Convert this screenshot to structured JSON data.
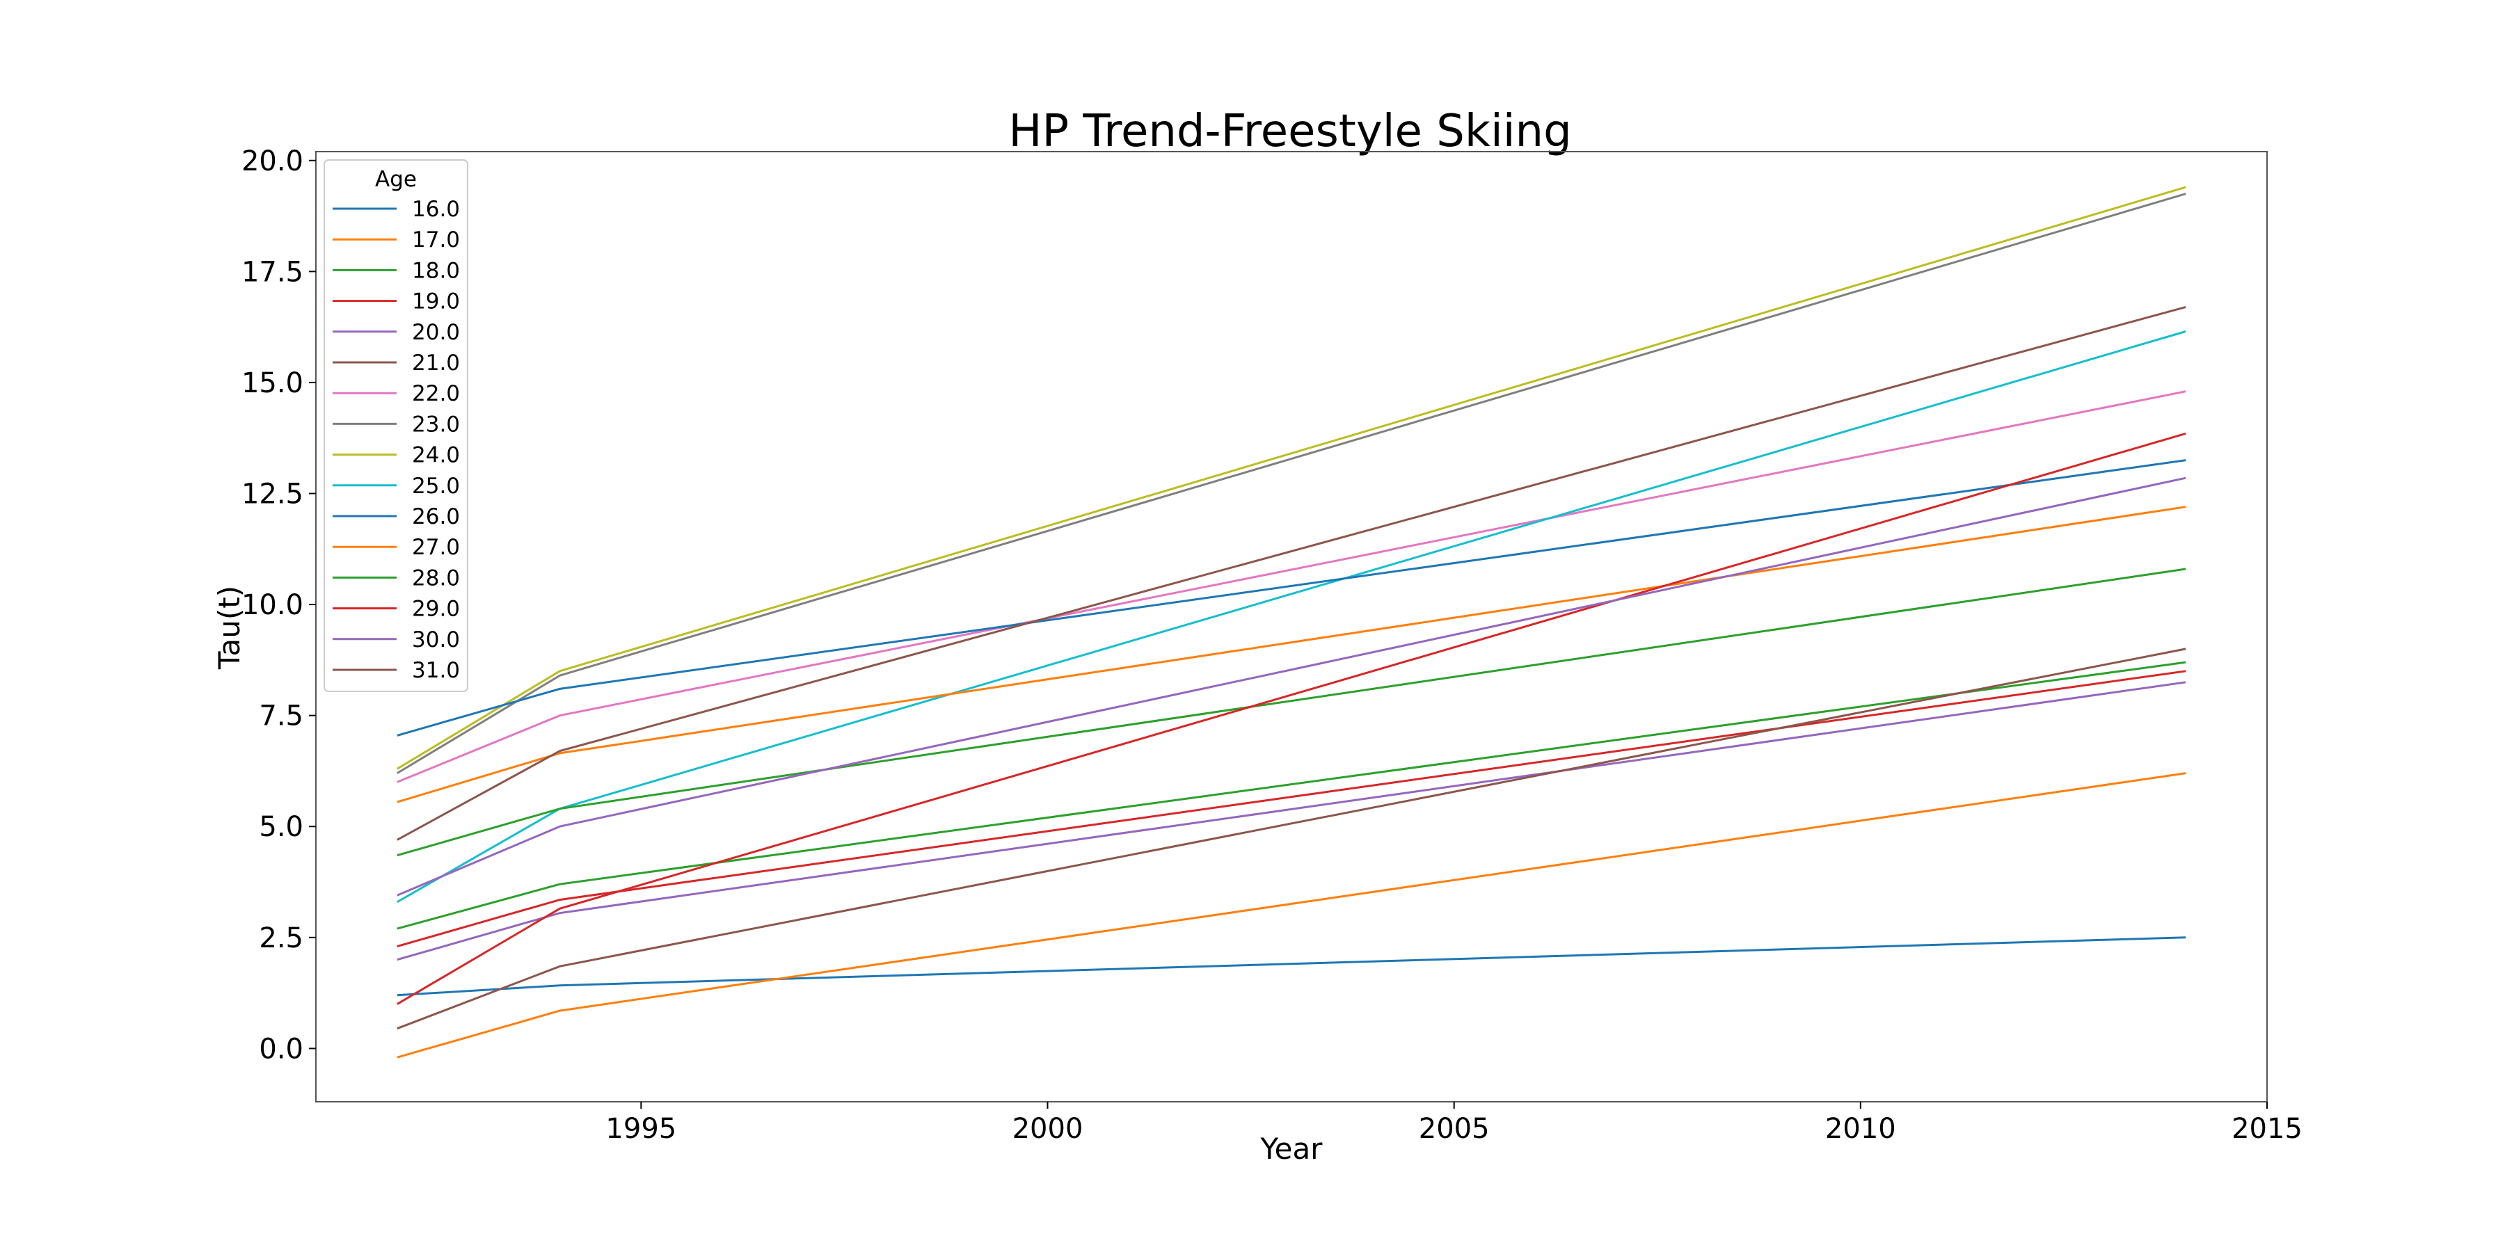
{
  "chart_data": {
    "type": "line",
    "title": "HP Trend-Freestyle Skiing",
    "xlabel": "Year",
    "ylabel": "Tau(t)",
    "xlim": [
      1991,
      2015
    ],
    "ylim": [
      -1.2,
      20.2
    ],
    "x_ticks": [
      1995,
      2000,
      2005,
      2010,
      2015
    ],
    "x_tick_labels": [
      "1995",
      "2000",
      "2005",
      "2010",
      "2015"
    ],
    "y_ticks": [
      0.0,
      2.5,
      5.0,
      7.5,
      10.0,
      12.5,
      15.0,
      17.5,
      20.0
    ],
    "y_tick_labels": [
      "0.0",
      "2.5",
      "5.0",
      "7.5",
      "10.0",
      "12.5",
      "15.0",
      "17.5",
      "20.0"
    ],
    "grid": false,
    "legend": {
      "title": "Age",
      "placement": "upper-left"
    },
    "x": [
      1992,
      1994,
      2014
    ],
    "series": [
      {
        "name": "16.0",
        "color": "#1f77b4",
        "values": [
          1.2,
          1.42,
          2.5
        ]
      },
      {
        "name": "17.0",
        "color": "#ff7f0e",
        "values": [
          -0.2,
          0.85,
          6.2
        ]
      },
      {
        "name": "18.0",
        "color": "#2ca02c",
        "values": [
          2.7,
          3.7,
          8.7
        ]
      },
      {
        "name": "19.0",
        "color": "#d62728",
        "values": [
          2.3,
          3.35,
          8.5
        ]
      },
      {
        "name": "20.0",
        "color": "#9467bd",
        "values": [
          2.0,
          3.05,
          8.25
        ]
      },
      {
        "name": "21.0",
        "color": "#8c564b",
        "values": [
          0.45,
          1.85,
          9.0
        ]
      },
      {
        "name": "22.0",
        "color": "#e377c2",
        "values": [
          6.0,
          7.5,
          14.8
        ]
      },
      {
        "name": "23.0",
        "color": "#7f7f7f",
        "values": [
          6.2,
          8.4,
          19.25
        ]
      },
      {
        "name": "24.0",
        "color": "#bcbd22",
        "values": [
          6.3,
          8.5,
          19.4
        ]
      },
      {
        "name": "25.0",
        "color": "#17becf",
        "values": [
          3.3,
          5.4,
          16.15
        ]
      },
      {
        "name": "26.0",
        "color": "#1f77b4",
        "values": [
          7.05,
          8.1,
          13.25
        ]
      },
      {
        "name": "27.0",
        "color": "#ff7f0e",
        "values": [
          5.55,
          6.65,
          12.2
        ]
      },
      {
        "name": "28.0",
        "color": "#2ca02c",
        "values": [
          4.35,
          5.4,
          10.8
        ]
      },
      {
        "name": "29.0",
        "color": "#d62728",
        "values": [
          1.0,
          3.15,
          13.85
        ]
      },
      {
        "name": "30.0",
        "color": "#9467bd",
        "values": [
          3.45,
          5.0,
          12.85
        ]
      },
      {
        "name": "31.0",
        "color": "#8c564b",
        "values": [
          4.7,
          6.7,
          16.7
        ]
      }
    ]
  }
}
